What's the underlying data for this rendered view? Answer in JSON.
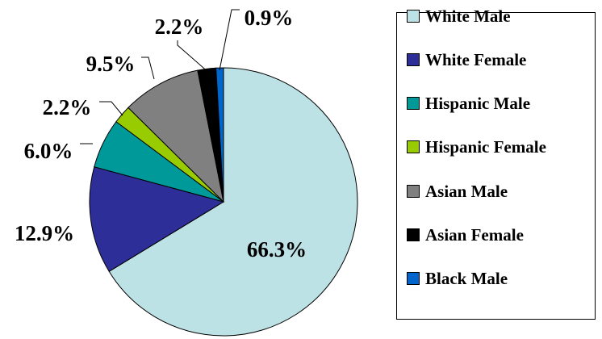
{
  "chart_data": {
    "type": "pie",
    "start_angle_deg": 0,
    "direction": "clockwise",
    "legend_position": "right",
    "slices": [
      {
        "name": "White Male",
        "value": 66.3,
        "label": "66.3%",
        "color": "#BDE2E6"
      },
      {
        "name": "White Female",
        "value": 12.9,
        "label": "12.9%",
        "color": "#2E2E99"
      },
      {
        "name": "Hispanic Male",
        "value": 6.0,
        "label": "6.0%",
        "color": "#009999"
      },
      {
        "name": "Hispanic Female",
        "value": 2.2,
        "label": "2.2%",
        "color": "#99CC00"
      },
      {
        "name": "Asian Male",
        "value": 9.5,
        "label": "9.5%",
        "color": "#808080"
      },
      {
        "name": "Asian Female",
        "value": 2.2,
        "label": "2.2%",
        "color": "#000000"
      },
      {
        "name": "Black Male",
        "value": 0.9,
        "label": "0.9%",
        "color": "#0066CC"
      }
    ]
  }
}
